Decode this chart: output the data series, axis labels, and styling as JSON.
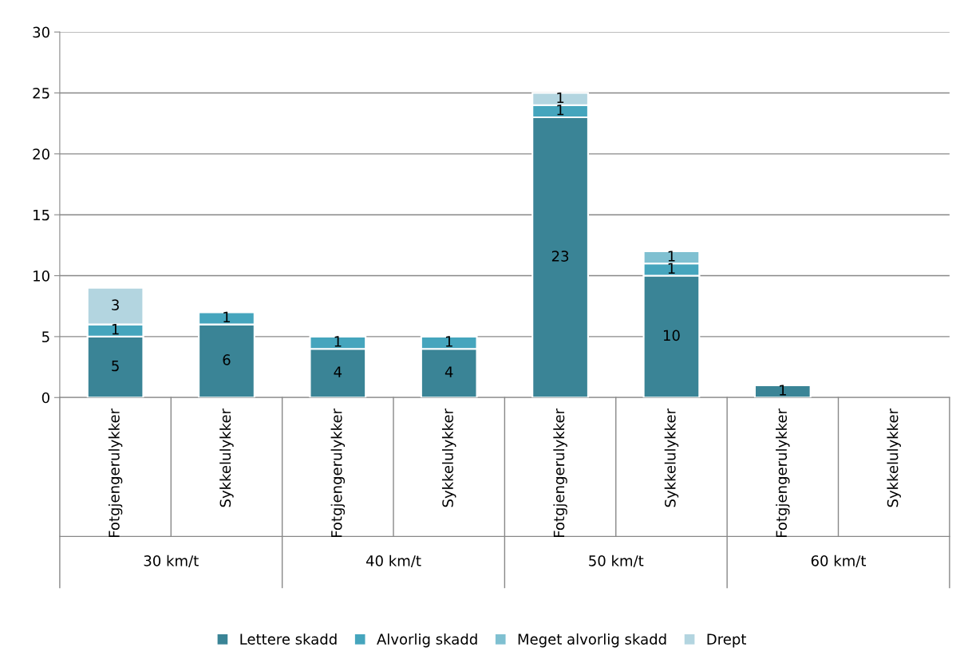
{
  "chart_data": {
    "type": "bar",
    "stacked": true,
    "categories": [
      "Fotgjengerulykker",
      "Sykkelulykker",
      "Fotgjengerulykker",
      "Sykkelulykker",
      "Fotgjengerulykker",
      "Sykkelulykker",
      "Fotgjengerulykker",
      "Sykkelulykker"
    ],
    "annotations": [
      "30 km/t",
      "40 km/t",
      "50 km/t",
      "60 km/t"
    ],
    "series": [
      {
        "name": "Lettere skadd",
        "color": "#3a8496",
        "values": [
          5,
          6,
          4,
          4,
          23,
          10,
          1,
          null
        ],
        "value_labels": [
          "5",
          "6",
          "4",
          "4",
          "23",
          "10",
          "1",
          null
        ]
      },
      {
        "name": "Alvorlig skadd",
        "color": "#45a5bd",
        "values": [
          1,
          1,
          1,
          1,
          1,
          1,
          null,
          null
        ],
        "value_labels": [
          "1",
          "1",
          "1",
          "1",
          "1",
          "1",
          null,
          null
        ]
      },
      {
        "name": "Meget alvorlig skadd",
        "color": "#7fc0d1",
        "values": [
          null,
          null,
          null,
          null,
          null,
          1,
          null,
          null
        ],
        "value_labels": [
          null,
          null,
          null,
          null,
          null,
          "1",
          null,
          null
        ]
      },
      {
        "name": "Drept",
        "color": "#b3d5e0",
        "values": [
          3,
          null,
          null,
          null,
          1,
          null,
          null,
          null
        ],
        "value_labels": [
          "3",
          null,
          null,
          null,
          "1",
          null,
          null,
          null
        ]
      }
    ],
    "ylim": [
      0,
      30
    ],
    "yticks": [
      0,
      5,
      10,
      15,
      20,
      25,
      30
    ],
    "grid": "y",
    "legend": "bottom"
  }
}
